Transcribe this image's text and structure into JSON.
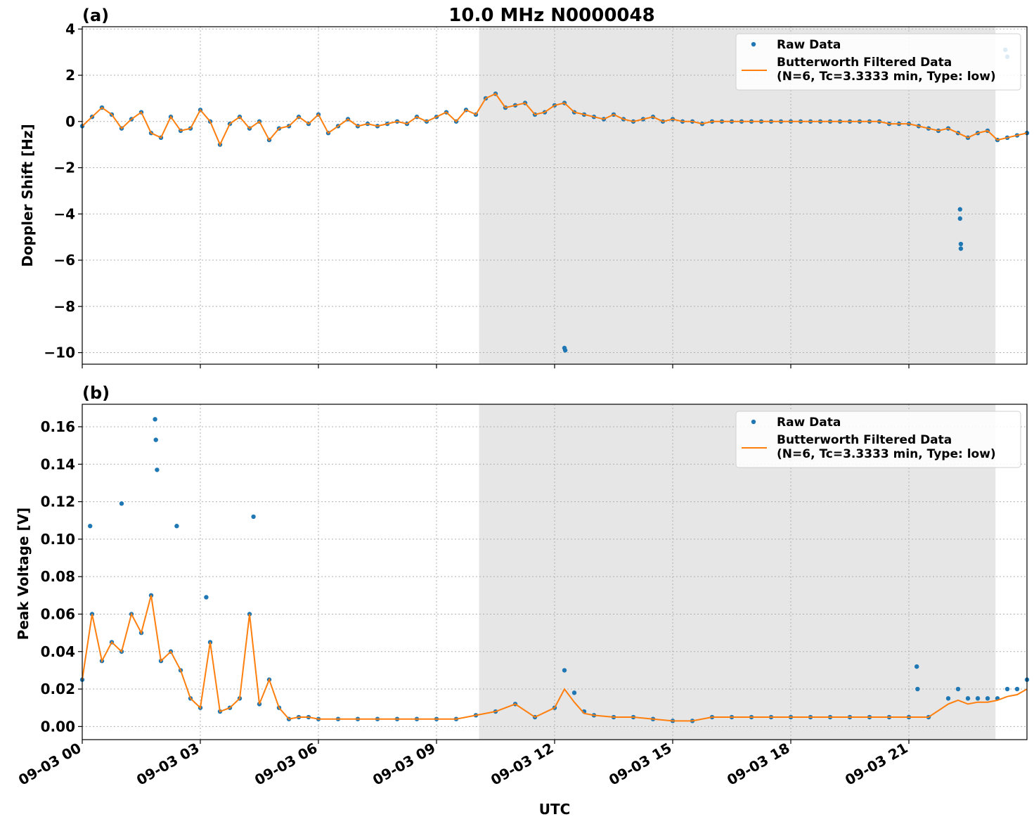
{
  "figure": {
    "title": "10.0 MHz N0000048",
    "xlabel": "UTC"
  },
  "chart_data": [
    {
      "type": "scatter",
      "panel_label": "(a)",
      "title": "10.0 MHz N0000048",
      "xlabel": "",
      "ylabel": "Doppler Shift [Hz]",
      "xlim": [
        0,
        24
      ],
      "ylim": [
        -10.5,
        4.1
      ],
      "yticks": [
        4,
        2,
        0,
        -2,
        -4,
        -6,
        -8,
        -10
      ],
      "ytick_labels": [
        "4",
        "2",
        "0",
        "−2",
        "−4",
        "−6",
        "−8",
        "−10"
      ],
      "grid": true,
      "legend_position": "top-right",
      "night_shading": {
        "start": 10.08,
        "end": 23.2,
        "color": "#e6e6e6"
      },
      "colors": {
        "raw": "#1f77b4",
        "filtered": "#ff7f0e"
      },
      "series": [
        {
          "name": "Raw Data",
          "kind": "points",
          "x": [
            0.0,
            0.25,
            0.5,
            0.75,
            1.0,
            1.25,
            1.5,
            1.75,
            2.0,
            2.25,
            2.5,
            2.75,
            3.0,
            3.25,
            3.5,
            3.75,
            4.0,
            4.25,
            4.5,
            4.75,
            5.0,
            5.25,
            5.5,
            5.75,
            6.0,
            6.25,
            6.5,
            6.75,
            7.0,
            7.25,
            7.5,
            7.75,
            8.0,
            8.25,
            8.5,
            8.75,
            9.0,
            9.25,
            9.5,
            9.75,
            10.0,
            10.25,
            10.5,
            10.75,
            11.0,
            11.25,
            11.5,
            11.75,
            12.0,
            12.25,
            12.5,
            12.75,
            13.0,
            13.25,
            13.5,
            13.75,
            14.0,
            14.25,
            14.5,
            14.75,
            15.0,
            15.25,
            15.5,
            15.75,
            16.0,
            16.25,
            16.5,
            16.75,
            17.0,
            17.25,
            17.5,
            17.75,
            18.0,
            18.25,
            18.5,
            18.75,
            19.0,
            19.25,
            19.5,
            19.75,
            20.0,
            20.25,
            20.5,
            20.75,
            21.0,
            21.25,
            21.5,
            21.75,
            22.0,
            22.25,
            22.5,
            22.75,
            23.0,
            23.25,
            23.5,
            23.75,
            24.0,
            22.3,
            22.3,
            22.32,
            22.32,
            12.25,
            12.27,
            23.45,
            23.5
          ],
          "y": [
            -0.2,
            0.2,
            0.6,
            0.3,
            -0.3,
            0.1,
            0.4,
            -0.5,
            -0.7,
            0.2,
            -0.4,
            -0.3,
            0.5,
            0.0,
            -1.0,
            -0.1,
            0.2,
            -0.3,
            0.0,
            -0.8,
            -0.3,
            -0.2,
            0.2,
            -0.1,
            0.3,
            -0.5,
            -0.2,
            0.1,
            -0.2,
            -0.1,
            -0.2,
            -0.1,
            0.0,
            -0.1,
            0.2,
            0.0,
            0.2,
            0.4,
            0.0,
            0.5,
            0.3,
            1.0,
            1.2,
            0.6,
            0.7,
            0.8,
            0.3,
            0.4,
            0.7,
            0.8,
            0.4,
            0.3,
            0.2,
            0.1,
            0.3,
            0.1,
            0.0,
            0.1,
            0.2,
            0.0,
            0.1,
            0.0,
            0.0,
            -0.1,
            0.0,
            0.0,
            0.0,
            0.0,
            0.0,
            0.0,
            0.0,
            0.0,
            0.0,
            0.0,
            0.0,
            0.0,
            0.0,
            0.0,
            0.0,
            0.0,
            0.0,
            0.0,
            -0.1,
            -0.1,
            -0.1,
            -0.2,
            -0.3,
            -0.4,
            -0.3,
            -0.5,
            -0.7,
            -0.5,
            -0.4,
            -0.8,
            -0.7,
            -0.6,
            -0.5,
            -3.8,
            -4.2,
            -5.3,
            -5.5,
            -9.8,
            -9.9,
            3.1,
            2.8
          ]
        },
        {
          "name": "Butterworth Filtered Data\n(N=6, Tc=3.3333 min, Type: low)",
          "kind": "line",
          "x": [
            0.0,
            0.25,
            0.5,
            0.75,
            1.0,
            1.25,
            1.5,
            1.75,
            2.0,
            2.25,
            2.5,
            2.75,
            3.0,
            3.25,
            3.5,
            3.75,
            4.0,
            4.25,
            4.5,
            4.75,
            5.0,
            5.25,
            5.5,
            5.75,
            6.0,
            6.25,
            6.5,
            6.75,
            7.0,
            7.25,
            7.5,
            7.75,
            8.0,
            8.25,
            8.5,
            8.75,
            9.0,
            9.25,
            9.5,
            9.75,
            10.0,
            10.25,
            10.5,
            10.75,
            11.0,
            11.25,
            11.5,
            11.75,
            12.0,
            12.25,
            12.5,
            12.75,
            13.0,
            13.25,
            13.5,
            13.75,
            14.0,
            14.25,
            14.5,
            14.75,
            15.0,
            15.25,
            15.5,
            15.75,
            16.0,
            16.25,
            16.5,
            16.75,
            17.0,
            17.25,
            17.5,
            17.75,
            18.0,
            18.25,
            18.5,
            18.75,
            19.0,
            19.25,
            19.5,
            19.75,
            20.0,
            20.25,
            20.5,
            20.75,
            21.0,
            21.25,
            21.5,
            21.75,
            22.0,
            22.25,
            22.5,
            22.75,
            23.0,
            23.25,
            23.5,
            23.75,
            24.0
          ],
          "y": [
            -0.2,
            0.2,
            0.6,
            0.3,
            -0.3,
            0.1,
            0.4,
            -0.5,
            -0.7,
            0.2,
            -0.4,
            -0.3,
            0.5,
            0.0,
            -1.0,
            -0.1,
            0.2,
            -0.3,
            0.0,
            -0.8,
            -0.3,
            -0.2,
            0.2,
            -0.1,
            0.3,
            -0.5,
            -0.2,
            0.1,
            -0.2,
            -0.1,
            -0.2,
            -0.1,
            0.0,
            -0.1,
            0.2,
            0.0,
            0.2,
            0.4,
            0.0,
            0.5,
            0.3,
            1.0,
            1.2,
            0.6,
            0.7,
            0.8,
            0.3,
            0.4,
            0.7,
            0.8,
            0.4,
            0.3,
            0.2,
            0.1,
            0.3,
            0.1,
            0.0,
            0.1,
            0.2,
            0.0,
            0.1,
            0.0,
            0.0,
            -0.1,
            0.0,
            0.0,
            0.0,
            0.0,
            0.0,
            0.0,
            0.0,
            0.0,
            0.0,
            0.0,
            0.0,
            0.0,
            0.0,
            0.0,
            0.0,
            0.0,
            0.0,
            0.0,
            -0.1,
            -0.1,
            -0.1,
            -0.2,
            -0.3,
            -0.4,
            -0.3,
            -0.5,
            -0.7,
            -0.5,
            -0.4,
            -0.8,
            -0.7,
            -0.6,
            -0.5
          ]
        }
      ]
    },
    {
      "type": "scatter",
      "panel_label": "(b)",
      "xlabel": "UTC",
      "ylabel": "Peak Voltage [V]",
      "xlim": [
        0,
        24
      ],
      "ylim": [
        -0.007,
        0.172
      ],
      "yticks": [
        0.16,
        0.14,
        0.12,
        0.1,
        0.08,
        0.06,
        0.04,
        0.02,
        0.0
      ],
      "ytick_labels": [
        "0.16",
        "0.14",
        "0.12",
        "0.10",
        "0.08",
        "0.06",
        "0.04",
        "0.02",
        "0.00"
      ],
      "xticks": [
        0,
        3,
        6,
        9,
        12,
        15,
        18,
        21
      ],
      "xtick_labels": [
        "09-03 00",
        "09-03 03",
        "09-03 06",
        "09-03 09",
        "09-03 12",
        "09-03 15",
        "09-03 18",
        "09-03 21"
      ],
      "grid": true,
      "legend_position": "top-right",
      "night_shading": {
        "start": 10.08,
        "end": 23.2,
        "color": "#e6e6e6"
      },
      "colors": {
        "raw": "#1f77b4",
        "filtered": "#ff7f0e"
      },
      "series": [
        {
          "name": "Raw Data",
          "kind": "points",
          "x": [
            0.0,
            0.25,
            0.5,
            0.75,
            1.0,
            1.25,
            1.5,
            1.75,
            2.0,
            2.25,
            2.5,
            2.75,
            3.0,
            3.25,
            3.5,
            3.75,
            4.0,
            4.25,
            4.5,
            4.75,
            5.0,
            5.25,
            5.5,
            5.75,
            6.0,
            6.5,
            7.0,
            7.5,
            8.0,
            8.5,
            9.0,
            9.5,
            10.0,
            10.5,
            11.0,
            11.5,
            12.0,
            12.25,
            12.5,
            12.75,
            13.0,
            13.5,
            14.0,
            14.5,
            15.0,
            15.5,
            16.0,
            16.5,
            17.0,
            17.5,
            18.0,
            18.5,
            19.0,
            19.5,
            20.0,
            20.5,
            21.0,
            21.5,
            22.0,
            22.25,
            22.5,
            22.75,
            23.0,
            23.25,
            23.5,
            23.75,
            24.0,
            1.85,
            1.87,
            1.9,
            1.0,
            0.2,
            4.35,
            21.2,
            21.22,
            3.15,
            2.4
          ],
          "y": [
            0.025,
            0.06,
            0.035,
            0.045,
            0.04,
            0.06,
            0.05,
            0.07,
            0.035,
            0.04,
            0.03,
            0.015,
            0.01,
            0.045,
            0.008,
            0.01,
            0.015,
            0.06,
            0.012,
            0.025,
            0.01,
            0.004,
            0.005,
            0.005,
            0.004,
            0.004,
            0.004,
            0.004,
            0.004,
            0.004,
            0.004,
            0.004,
            0.006,
            0.008,
            0.012,
            0.005,
            0.01,
            0.03,
            0.018,
            0.008,
            0.006,
            0.005,
            0.005,
            0.004,
            0.003,
            0.003,
            0.005,
            0.005,
            0.005,
            0.005,
            0.005,
            0.005,
            0.005,
            0.005,
            0.005,
            0.005,
            0.005,
            0.005,
            0.015,
            0.02,
            0.015,
            0.015,
            0.015,
            0.015,
            0.02,
            0.02,
            0.025,
            0.164,
            0.153,
            0.137,
            0.119,
            0.107,
            0.112,
            0.032,
            0.02,
            0.069,
            0.107
          ]
        },
        {
          "name": "Butterworth Filtered Data\n(N=6, Tc=3.3333 min, Type: low)",
          "kind": "line",
          "x": [
            0.0,
            0.25,
            0.5,
            0.75,
            1.0,
            1.25,
            1.5,
            1.75,
            2.0,
            2.25,
            2.5,
            2.75,
            3.0,
            3.25,
            3.5,
            3.75,
            4.0,
            4.25,
            4.5,
            4.75,
            5.0,
            5.25,
            5.5,
            5.75,
            6.0,
            6.5,
            7.0,
            7.5,
            8.0,
            8.5,
            9.0,
            9.5,
            10.0,
            10.5,
            11.0,
            11.5,
            12.0,
            12.25,
            12.5,
            12.75,
            13.0,
            13.5,
            14.0,
            14.5,
            15.0,
            15.5,
            16.0,
            16.5,
            17.0,
            17.5,
            18.0,
            18.5,
            19.0,
            19.5,
            20.0,
            20.5,
            21.0,
            21.5,
            22.0,
            22.25,
            22.5,
            22.75,
            23.0,
            23.25,
            23.5,
            23.75,
            24.0
          ],
          "y": [
            0.025,
            0.06,
            0.035,
            0.045,
            0.04,
            0.06,
            0.05,
            0.07,
            0.035,
            0.04,
            0.03,
            0.015,
            0.01,
            0.045,
            0.008,
            0.01,
            0.015,
            0.06,
            0.012,
            0.025,
            0.01,
            0.004,
            0.005,
            0.005,
            0.004,
            0.004,
            0.004,
            0.004,
            0.004,
            0.004,
            0.004,
            0.004,
            0.006,
            0.008,
            0.012,
            0.005,
            0.01,
            0.02,
            0.013,
            0.007,
            0.006,
            0.005,
            0.005,
            0.004,
            0.003,
            0.003,
            0.005,
            0.005,
            0.005,
            0.005,
            0.005,
            0.005,
            0.005,
            0.005,
            0.005,
            0.005,
            0.005,
            0.005,
            0.012,
            0.014,
            0.012,
            0.013,
            0.013,
            0.014,
            0.016,
            0.017,
            0.02
          ]
        }
      ]
    }
  ]
}
